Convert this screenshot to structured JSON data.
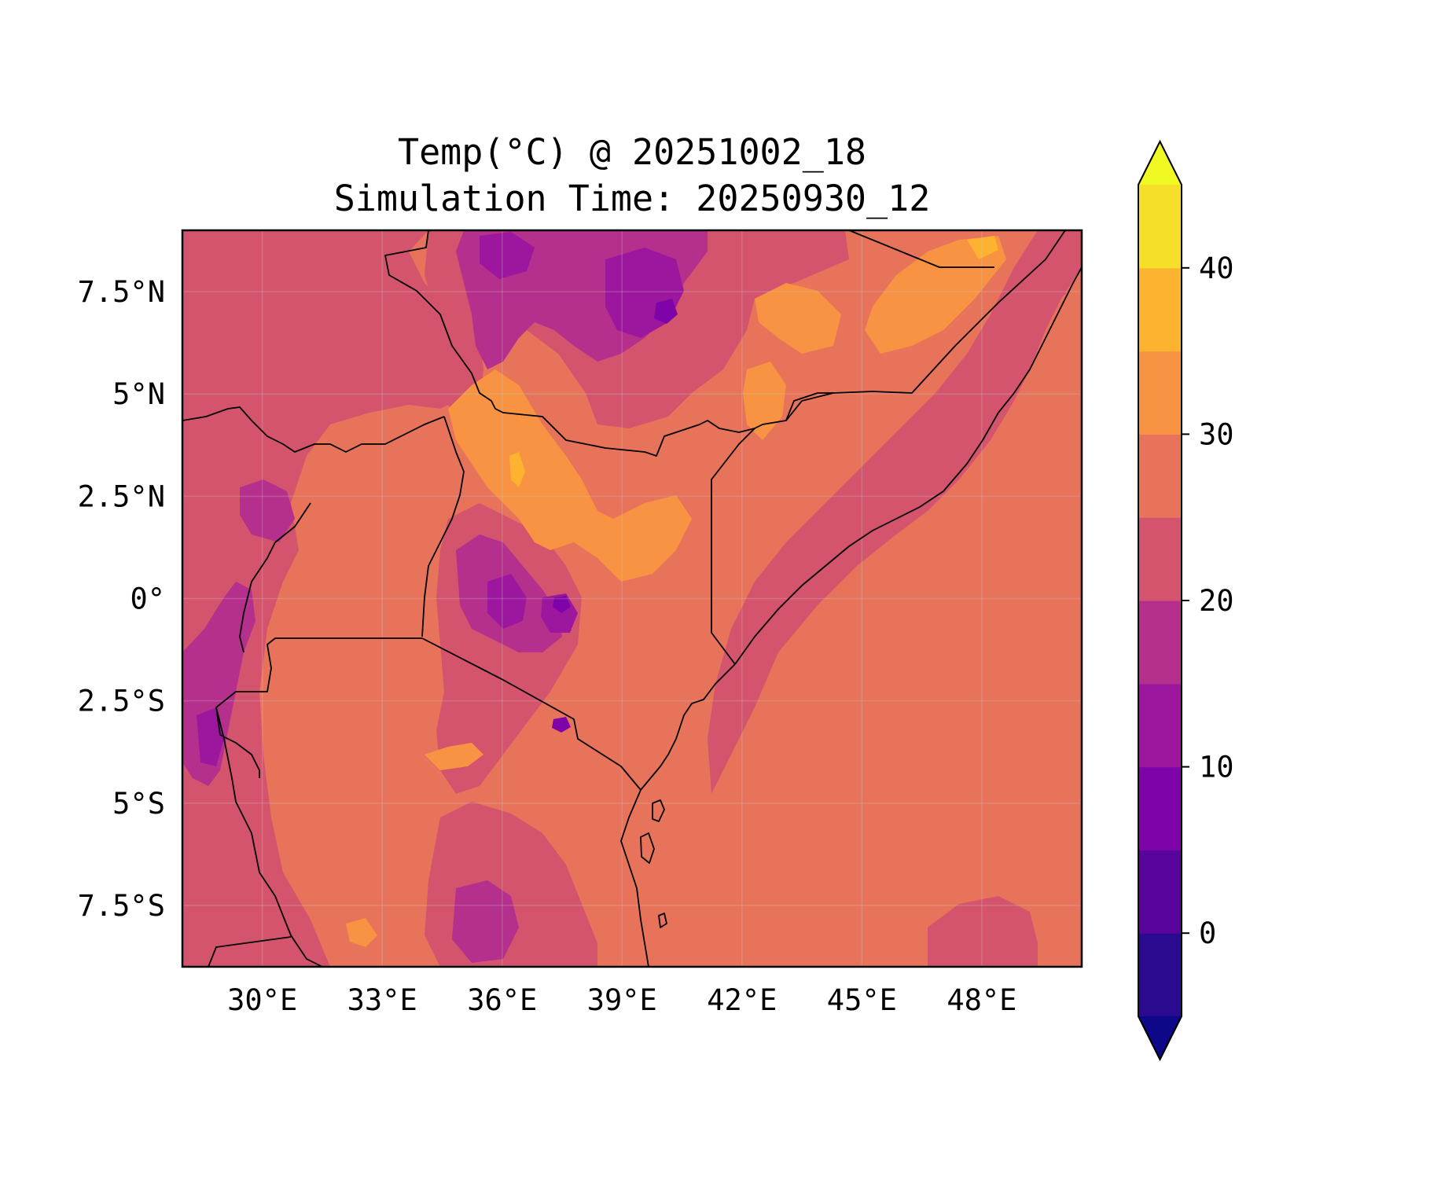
{
  "title_line1": "Temp(°C) @ 20251002_18",
  "title_line2": "Simulation Time: 20250930_12",
  "map": {
    "type": "filled-contour",
    "variable": "Temp(°C)",
    "lon_range": [
      28,
      50.5
    ],
    "lat_range": [
      -9,
      9
    ],
    "lon_ticks": [
      {
        "value": 30,
        "label": "30°E"
      },
      {
        "value": 33,
        "label": "33°E"
      },
      {
        "value": 36,
        "label": "36°E"
      },
      {
        "value": 39,
        "label": "39°E"
      },
      {
        "value": 42,
        "label": "42°E"
      },
      {
        "value": 45,
        "label": "45°E"
      },
      {
        "value": 48,
        "label": "48°E"
      }
    ],
    "lat_ticks": [
      {
        "value": 7.5,
        "label": "7.5°N"
      },
      {
        "value": 5,
        "label": "5°N"
      },
      {
        "value": 2.5,
        "label": "2.5°N"
      },
      {
        "value": 0,
        "label": "0°"
      },
      {
        "value": -2.5,
        "label": "2.5°S"
      },
      {
        "value": -5,
        "label": "5°S"
      },
      {
        "value": -7.5,
        "label": "7.5°S"
      }
    ],
    "grid": true
  },
  "colorbar": {
    "levels": [
      -5,
      0,
      5,
      10,
      15,
      20,
      25,
      30,
      35,
      40,
      45
    ],
    "colors": [
      "#2a0a8f",
      "#5a049e",
      "#7e03a8",
      "#9c179e",
      "#b52f8c",
      "#d4546e",
      "#e8735b",
      "#f79342",
      "#fdb32f",
      "#f5df28"
    ],
    "under_color": "#0d0887",
    "over_color": "#f0f921",
    "extend": "both",
    "ticks": [
      {
        "value": 0,
        "label": "0"
      },
      {
        "value": 10,
        "label": "10"
      },
      {
        "value": 20,
        "label": "20"
      },
      {
        "value": 30,
        "label": "30"
      },
      {
        "value": 40,
        "label": "40"
      }
    ]
  }
}
